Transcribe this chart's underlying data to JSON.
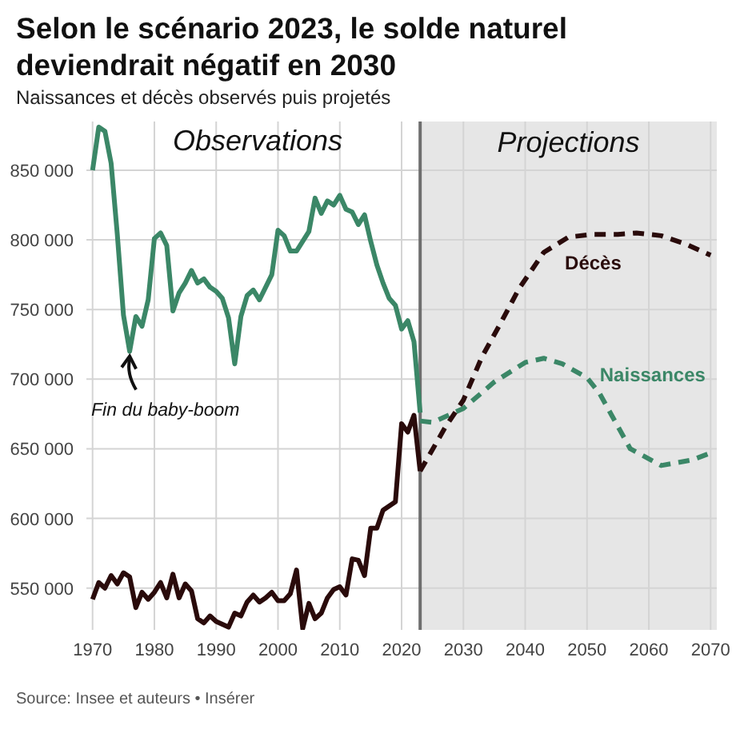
{
  "chart_data": {
    "type": "line",
    "title": "Selon le scénario 2023, le solde naturel deviendrait négatif en 2030",
    "subtitle": "Naissances et décès observés puis projetés",
    "series": [
      {
        "color": "#3b8767",
        "line_style": "solid",
        "x": [
          1970,
          1971,
          1972,
          1973,
          1974,
          1975,
          1976,
          1977,
          1978,
          1979,
          1980,
          1981,
          1982,
          1983,
          1984,
          1985,
          1986,
          1987,
          1988,
          1989,
          1990,
          1991,
          1992,
          1993,
          1994,
          1995,
          1996,
          1997,
          1998,
          1999,
          2000,
          2001,
          2002,
          2003,
          2004,
          2005,
          2006,
          2007,
          2008,
          2009,
          2010,
          2011,
          2012,
          2013,
          2014,
          2015,
          2016,
          2017,
          2018,
          2019,
          2020,
          2021,
          2022,
          2023
        ],
        "values": [
          850000,
          881000,
          878000,
          855000,
          804000,
          746000,
          720000,
          745000,
          738000,
          757000,
          801000,
          805000,
          796000,
          749000,
          762000,
          769000,
          778000,
          769000,
          772000,
          766000,
          763000,
          758000,
          744000,
          711000,
          745000,
          760000,
          764000,
          757000,
          766000,
          775000,
          807000,
          803000,
          792000,
          792000,
          799000,
          806000,
          830000,
          819000,
          828000,
          825000,
          832000,
          822000,
          820000,
          811000,
          818000,
          799000,
          782000,
          769000,
          758000,
          753000,
          736000,
          742000,
          727000,
          676000
        ]
      },
      {
        "color": "#2a0b0b",
        "line_style": "solid",
        "x": [
          1970,
          1971,
          1972,
          1973,
          1974,
          1975,
          1976,
          1977,
          1978,
          1979,
          1980,
          1981,
          1982,
          1983,
          1984,
          1985,
          1986,
          1987,
          1988,
          1989,
          1990,
          1991,
          1992,
          1993,
          1994,
          1995,
          1996,
          1997,
          1998,
          1999,
          2000,
          2001,
          2002,
          2003,
          2004,
          2005,
          2006,
          2007,
          2008,
          2009,
          2010,
          2011,
          2012,
          2013,
          2014,
          2015,
          2016,
          2017,
          2018,
          2019,
          2020,
          2021,
          2022,
          2023
        ],
        "values": [
          542000,
          554000,
          550000,
          559000,
          553000,
          561000,
          558000,
          536000,
          547000,
          542000,
          547000,
          554000,
          543000,
          560000,
          543000,
          553000,
          548000,
          528000,
          525000,
          530000,
          526000,
          524000,
          522000,
          532000,
          530000,
          540000,
          545000,
          540000,
          543000,
          547000,
          541000,
          541000,
          546000,
          563000,
          521000,
          539000,
          528000,
          532000,
          543000,
          549000,
          551000,
          545000,
          571000,
          570000,
          559000,
          593000,
          593000,
          606000,
          609000,
          612000,
          668000,
          662000,
          674000,
          634000
        ]
      },
      {
        "name": "Naissances",
        "color": "#3b8767",
        "line_style": "dashed",
        "x": [
          2023,
          2025,
          2030,
          2035,
          2040,
          2043,
          2046,
          2050,
          2052,
          2057,
          2062,
          2067,
          2070
        ],
        "values": [
          670000,
          669000,
          679000,
          698000,
          712000,
          715000,
          711000,
          701000,
          690000,
          650000,
          638000,
          642000,
          647000
        ]
      },
      {
        "name": "Décès",
        "color": "#2a0b0b",
        "line_style": "dashed",
        "x": [
          2023,
          2027,
          2030,
          2033,
          2036,
          2039,
          2043,
          2047,
          2051,
          2055,
          2058,
          2062,
          2066,
          2070
        ],
        "values": [
          634000,
          665000,
          685000,
          716000,
          740000,
          765000,
          791000,
          802000,
          804000,
          804000,
          805000,
          803000,
          797000,
          789000
        ]
      }
    ],
    "xlim": [
      1969,
      2071
    ],
    "xticks": [
      1970,
      1980,
      1990,
      2000,
      2010,
      2020,
      2030,
      2040,
      2050,
      2060,
      2070
    ],
    "ylim": [
      520000,
      885000
    ],
    "yticks": [
      {
        "value": 550000,
        "label": "550 000"
      },
      {
        "value": 600000,
        "label": "600 000"
      },
      {
        "value": 650000,
        "label": "650 000"
      },
      {
        "value": 700000,
        "label": "700 000"
      },
      {
        "value": 750000,
        "label": "750 000"
      },
      {
        "value": 800000,
        "label": "800 000"
      },
      {
        "value": 850000,
        "label": "850 000"
      }
    ],
    "bands": [
      {
        "axis": "x",
        "from": 2023,
        "to": 2071,
        "label": "Projections",
        "color": "#e6e6e6"
      }
    ],
    "ref_lines": [
      {
        "axis": "x",
        "value": 2023,
        "color": "#6e6e6e"
      }
    ],
    "annotations": [
      "Observations",
      {
        "text": "Fin du baby-boom",
        "x": 1976,
        "y": 720000
      },
      "Source: Insee et auteurs • Insérer"
    ],
    "grid": true,
    "legend": false,
    "marker": "none"
  }
}
